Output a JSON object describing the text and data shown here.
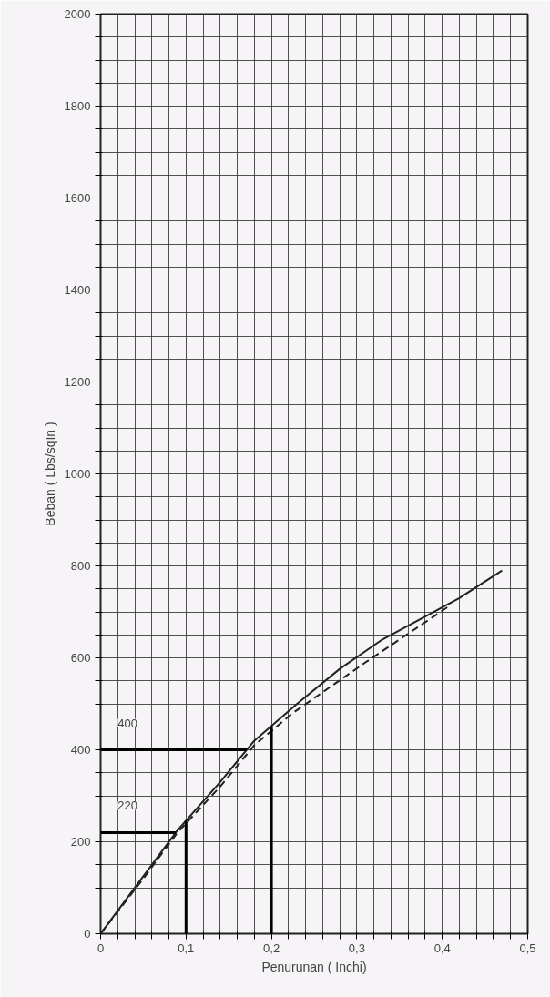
{
  "chart_data": {
    "type": "line",
    "xlabel": "Penurunan ( Inchi)",
    "ylabel": "Beban ( Lbs/sqIn )",
    "xlim": [
      0,
      0.5
    ],
    "ylim": [
      0,
      2000
    ],
    "xticks": [
      0,
      {
        "value": 0.02,
        "label": null
      },
      {
        "value": 0.04,
        "label": null
      },
      {
        "value": 0.06,
        "label": null
      },
      {
        "value": 0.08,
        "label": null
      },
      {
        "value": 0.1,
        "label": "0,1"
      },
      {
        "value": 0.12,
        "label": null
      },
      {
        "value": 0.14,
        "label": null
      },
      {
        "value": 0.16,
        "label": null
      },
      {
        "value": 0.18,
        "label": null
      },
      {
        "value": 0.2,
        "label": "0,2"
      },
      {
        "value": 0.22,
        "label": null
      },
      {
        "value": 0.24,
        "label": null
      },
      {
        "value": 0.26,
        "label": null
      },
      {
        "value": 0.28,
        "label": null
      },
      {
        "value": 0.3,
        "label": "0,3"
      },
      {
        "value": 0.32,
        "label": null
      },
      {
        "value": 0.34,
        "label": null
      },
      {
        "value": 0.36,
        "label": null
      },
      {
        "value": 0.38,
        "label": null
      },
      {
        "value": 0.4,
        "label": "0,4"
      },
      {
        "value": 0.42,
        "label": null
      },
      {
        "value": 0.44,
        "label": null
      },
      {
        "value": 0.46,
        "label": null
      },
      {
        "value": 0.48,
        "label": null
      },
      {
        "value": 0.5,
        "label": "0,5"
      }
    ],
    "yticks": [
      0,
      {
        "value": 50,
        "label": null
      },
      {
        "value": 100,
        "label": null
      },
      {
        "value": 150,
        "label": null
      },
      200,
      {
        "value": 250,
        "label": null
      },
      {
        "value": 300,
        "label": null
      },
      {
        "value": 350,
        "label": null
      },
      400,
      {
        "value": 450,
        "label": null
      },
      {
        "value": 500,
        "label": null
      },
      {
        "value": 550,
        "label": null
      },
      600,
      {
        "value": 650,
        "label": null
      },
      {
        "value": 700,
        "label": null
      },
      {
        "value": 750,
        "label": null
      },
      800,
      {
        "value": 850,
        "label": null
      },
      {
        "value": 900,
        "label": null
      },
      {
        "value": 950,
        "label": null
      },
      1000,
      {
        "value": 1050,
        "label": null
      },
      {
        "value": 1100,
        "label": null
      },
      {
        "value": 1150,
        "label": null
      },
      1200,
      {
        "value": 1250,
        "label": null
      },
      {
        "value": 1300,
        "label": null
      },
      {
        "value": 1350,
        "label": null
      },
      1400,
      {
        "value": 1450,
        "label": null
      },
      {
        "value": 1500,
        "label": null
      },
      {
        "value": 1550,
        "label": null
      },
      1600,
      {
        "value": 1650,
        "label": null
      },
      {
        "value": 1700,
        "label": null
      },
      {
        "value": 1750,
        "label": null
      },
      1800,
      {
        "value": 1850,
        "label": null
      },
      {
        "value": 1900,
        "label": null
      },
      {
        "value": 1950,
        "label": null
      },
      2000
    ],
    "grid": true,
    "marker": "none",
    "series": [
      {
        "color": "#222222",
        "line_style": "solid",
        "x": [
          0,
          0.05,
          0.09,
          0.14,
          0.18,
          0.23,
          0.28,
          0.33,
          0.38,
          0.42,
          0.47
        ],
        "values": [
          0,
          125,
          225,
          330,
          420,
          500,
          576,
          640,
          690,
          730,
          790
        ]
      },
      {
        "color": "#222222",
        "line_style": "dashed",
        "x": [
          0,
          0.05,
          0.09,
          0.14,
          0.18,
          0.225,
          0.31,
          0.41
        ],
        "values": [
          0,
          120,
          220,
          320,
          410,
          480,
          590,
          715
        ]
      }
    ],
    "ref_lines": [
      {
        "axis": "y",
        "value": 400,
        "label": "400"
      },
      {
        "axis": "y",
        "value": 220,
        "label": "220"
      },
      {
        "axis": "x",
        "value": 0.1
      },
      {
        "axis": "x",
        "value": 0.2
      }
    ]
  }
}
